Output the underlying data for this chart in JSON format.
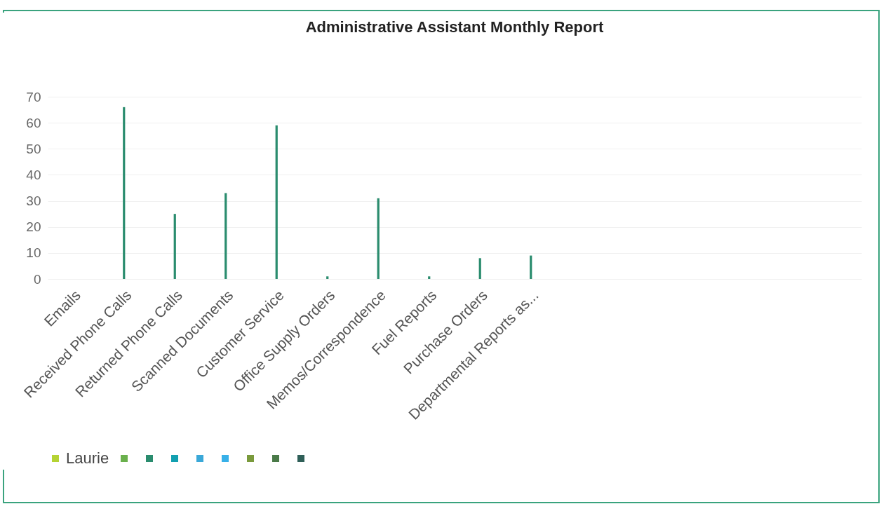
{
  "chart_data": {
    "type": "bar",
    "title": "Administrative Assistant Monthly Report",
    "categories": [
      "Emails",
      "Received Phone Calls",
      "Returned Phone Calls",
      "Scanned Documents",
      "Customer Service",
      "Office Supply Orders",
      "Memos/Correspondence",
      "Fuel Reports",
      "Purchase Orders",
      "Departmental Reports as...",
      null,
      null,
      null,
      null,
      null,
      null
    ],
    "series": [
      {
        "name": "Laurie",
        "color": "#b5d334",
        "values": [
          null,
          null,
          null,
          null,
          null,
          null,
          null,
          null,
          null,
          null,
          null,
          null,
          null,
          null,
          null,
          null
        ]
      },
      {
        "color": "#6ab04c",
        "values": [
          null,
          null,
          null,
          null,
          null,
          null,
          null,
          null,
          null,
          null,
          null,
          null,
          null,
          null,
          null,
          null
        ]
      },
      {
        "color": "#2a8c6e",
        "values": [
          0,
          66,
          25,
          33,
          59,
          1,
          31,
          1,
          8,
          9,
          null,
          null,
          null,
          null,
          null,
          null
        ]
      },
      {
        "color": "#12a0b0",
        "values": [
          null,
          null,
          null,
          null,
          null,
          null,
          null,
          null,
          null,
          null,
          null,
          null,
          null,
          null,
          null,
          null
        ]
      },
      {
        "color": "#3aa8d8",
        "values": [
          null,
          null,
          null,
          null,
          null,
          null,
          null,
          null,
          null,
          null,
          null,
          null,
          null,
          null,
          null,
          null
        ]
      },
      {
        "color": "#38b0e8",
        "values": [
          null,
          null,
          null,
          null,
          null,
          null,
          null,
          null,
          null,
          null,
          null,
          null,
          null,
          null,
          null,
          null
        ]
      },
      {
        "color": "#7a9a3c",
        "values": [
          null,
          null,
          null,
          null,
          null,
          null,
          null,
          null,
          null,
          null,
          null,
          null,
          null,
          null,
          null,
          null
        ]
      },
      {
        "color": "#4a7a48",
        "values": [
          null,
          null,
          null,
          null,
          null,
          null,
          null,
          null,
          null,
          null,
          null,
          null,
          null,
          null,
          null,
          null
        ]
      },
      {
        "color": "#2f5f58",
        "values": [
          null,
          null,
          null,
          null,
          null,
          null,
          null,
          null,
          null,
          null,
          null,
          null,
          null,
          null,
          null,
          null
        ]
      }
    ],
    "ylim": [
      0,
      70
    ],
    "yticks": [
      0,
      10,
      20,
      30,
      40,
      50,
      60,
      70
    ],
    "grid": "y",
    "legend": "bottom"
  }
}
